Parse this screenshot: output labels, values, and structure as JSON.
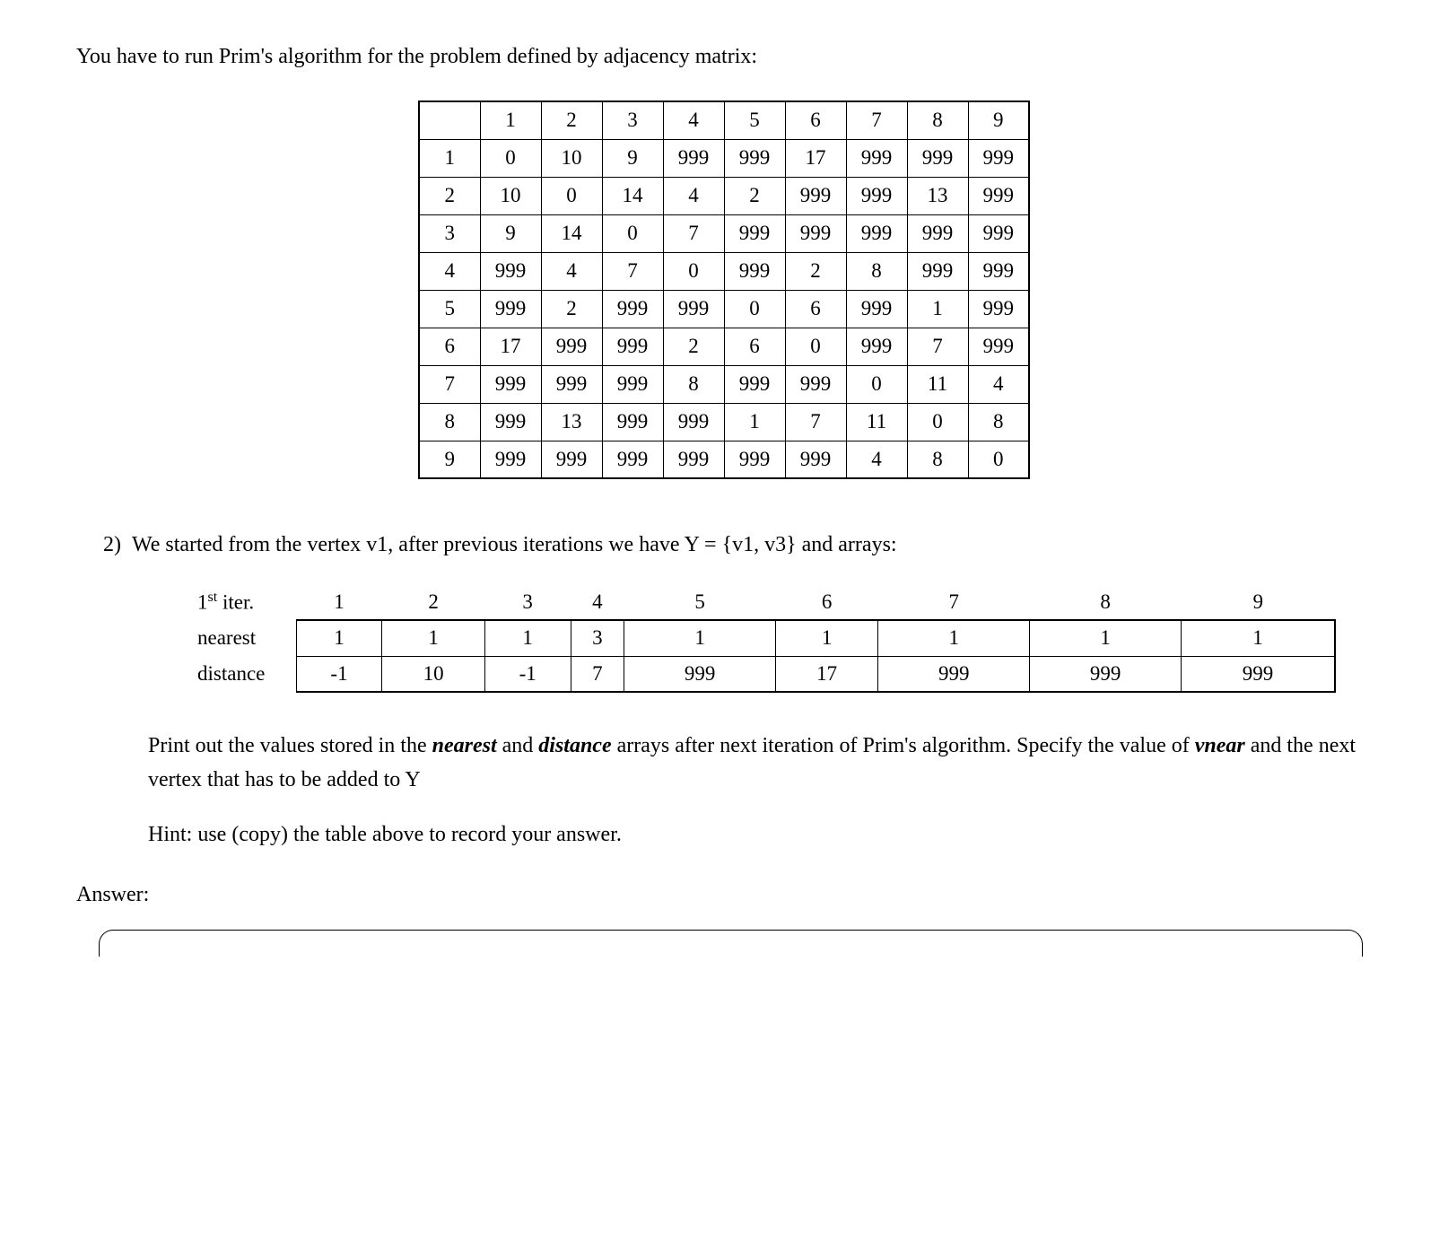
{
  "intro": "You have to run Prim's algorithm for the problem defined by adjacency matrix:",
  "adjacency_matrix": {
    "header": [
      "1",
      "2",
      "3",
      "4",
      "5",
      "6",
      "7",
      "8",
      "9"
    ],
    "rows": [
      {
        "label": "1",
        "cells": [
          "0",
          "10",
          "9",
          "999",
          "999",
          "17",
          "999",
          "999",
          "999"
        ]
      },
      {
        "label": "2",
        "cells": [
          "10",
          "0",
          "14",
          "4",
          "2",
          "999",
          "999",
          "13",
          "999"
        ]
      },
      {
        "label": "3",
        "cells": [
          "9",
          "14",
          "0",
          "7",
          "999",
          "999",
          "999",
          "999",
          "999"
        ]
      },
      {
        "label": "4",
        "cells": [
          "999",
          "4",
          "7",
          "0",
          "999",
          "2",
          "8",
          "999",
          "999"
        ]
      },
      {
        "label": "5",
        "cells": [
          "999",
          "2",
          "999",
          "999",
          "0",
          "6",
          "999",
          "1",
          "999"
        ]
      },
      {
        "label": "6",
        "cells": [
          "17",
          "999",
          "999",
          "2",
          "6",
          "0",
          "999",
          "7",
          "999"
        ]
      },
      {
        "label": "7",
        "cells": [
          "999",
          "999",
          "999",
          "8",
          "999",
          "999",
          "0",
          "11",
          "4"
        ]
      },
      {
        "label": "8",
        "cells": [
          "999",
          "13",
          "999",
          "999",
          "1",
          "7",
          "11",
          "0",
          "8"
        ]
      },
      {
        "label": "9",
        "cells": [
          "999",
          "999",
          "999",
          "999",
          "999",
          "999",
          "4",
          "8",
          "0"
        ]
      }
    ]
  },
  "question": {
    "number": "2)",
    "text": "We started from the vertex v1, after previous iterations we have Y = {v1, v3} and arrays:"
  },
  "arrays_table": {
    "header_label": "1",
    "header_label_suffix": " iter.",
    "columns": [
      "1",
      "2",
      "3",
      "4",
      "5",
      "6",
      "7",
      "8",
      "9"
    ],
    "rows": [
      {
        "label": "nearest",
        "cells": [
          "1",
          "1",
          "1",
          "3",
          "1",
          "1",
          "1",
          "1",
          "1"
        ]
      },
      {
        "label": "distance",
        "cells": [
          "-1",
          "10",
          "-1",
          "7",
          "999",
          "17",
          "999",
          "999",
          "999"
        ]
      }
    ]
  },
  "instruction_pre": "Print out the values stored in the ",
  "instruction_bold1": "nearest",
  "instruction_mid1": " and ",
  "instruction_bold2": "distance",
  "instruction_mid2": " arrays after next iteration of Prim's algorithm. Specify the value of ",
  "instruction_bold3": "vnear",
  "instruction_post": " and the next vertex that has to be added to Y",
  "hint": "Hint: use (copy) the table above to record your answer.",
  "answer_label": "Answer:"
}
